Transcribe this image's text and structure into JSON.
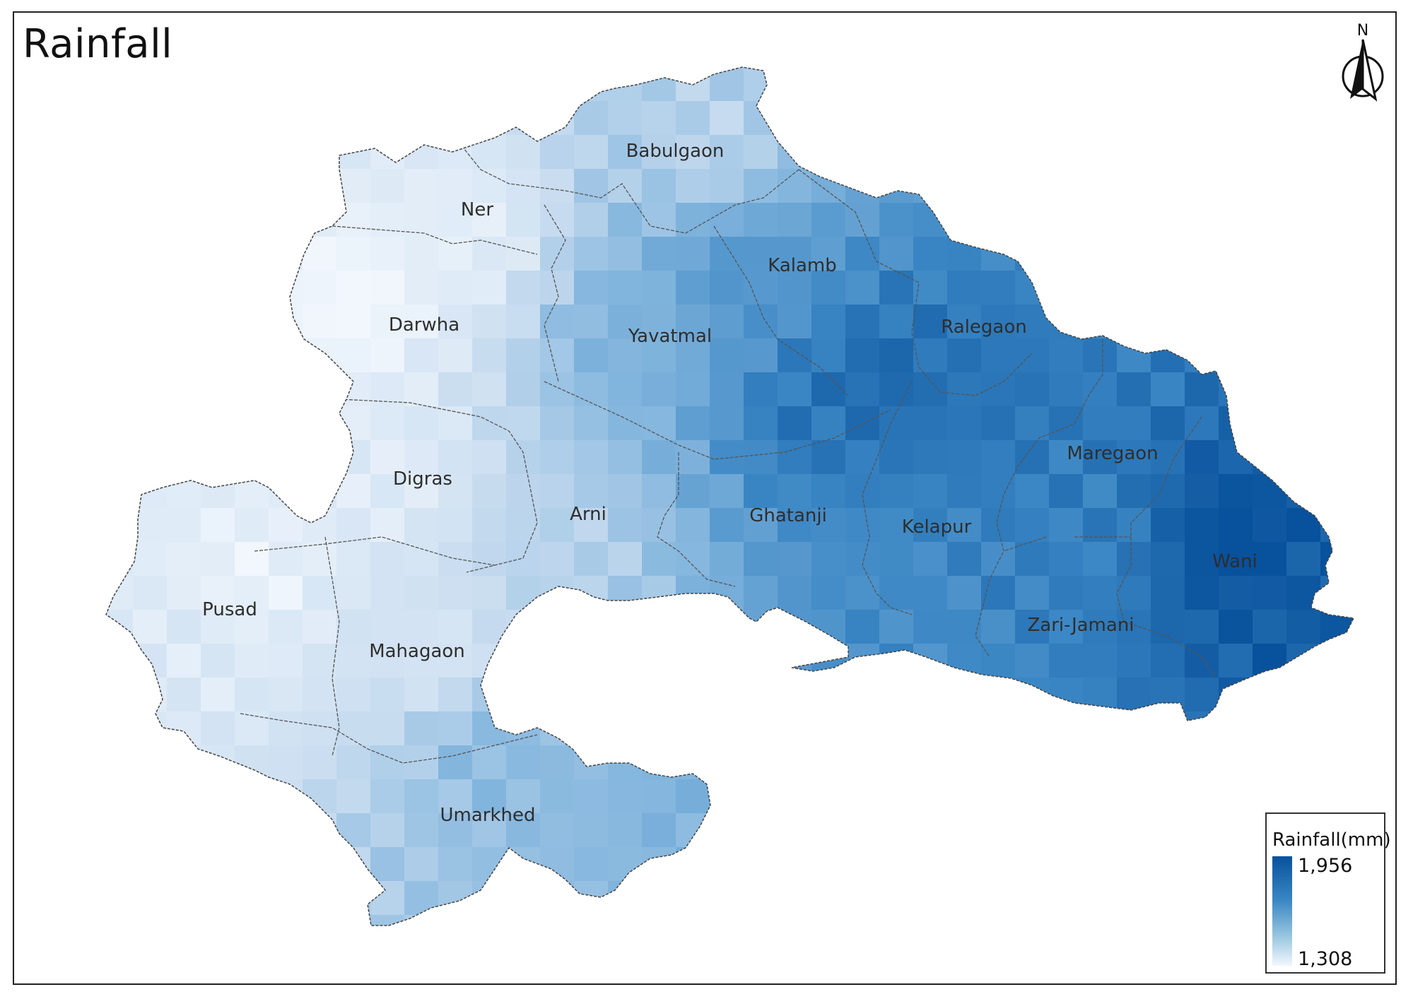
{
  "map": {
    "title": "Rainfall",
    "districts": [
      "Babulgaon",
      "Ner",
      "Kalamb",
      "Darwha",
      "Yavatmal",
      "Ralegaon",
      "Digras",
      "Maregaon",
      "Arni",
      "Ghatanji",
      "Kelapur",
      "Wani",
      "Pusad",
      "Zari-Jamani",
      "Mahagaon",
      "Umarkhed"
    ],
    "north_label": "N"
  },
  "legend": {
    "title": "Rainfall(mm)",
    "max_label": "1,956",
    "min_label": "1,308",
    "color_high": "#08519c",
    "color_low": "#f2f7fd"
  },
  "colors": {
    "frame": "#222222",
    "boundary": "#555555"
  }
}
